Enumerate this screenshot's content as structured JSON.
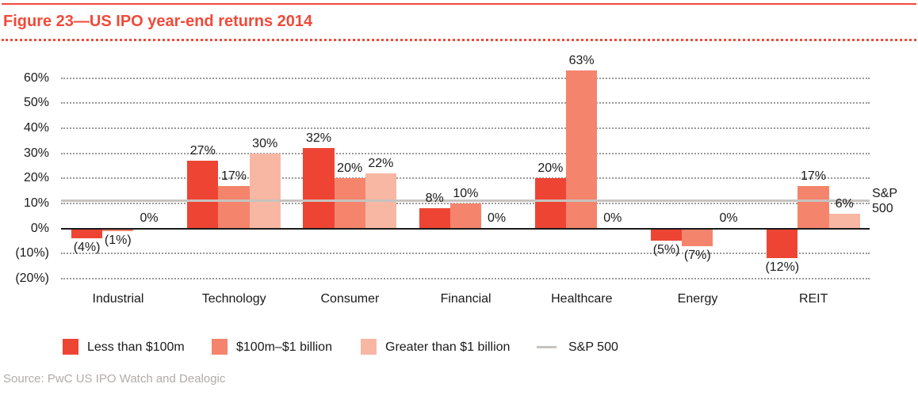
{
  "header": {
    "title": "Figure 23—US IPO year-end returns 2014"
  },
  "chart_data": {
    "type": "bar",
    "title": "US IPO year-end returns 2014",
    "xlabel": "",
    "ylabel": "",
    "categories": [
      "Industrial",
      "Technology",
      "Consumer",
      "Financial",
      "Healthcare",
      "Energy",
      "REIT"
    ],
    "series": [
      {
        "name": "Less than $100m",
        "color": "#ee4434",
        "values": [
          -4,
          27,
          32,
          8,
          20,
          -5,
          -12
        ],
        "labels": [
          "(4%)",
          "27%",
          "32%",
          "8%",
          "20%",
          "(5%)",
          "(12%)"
        ]
      },
      {
        "name": "$100m–$1 billion",
        "color": "#f5846c",
        "values": [
          -1,
          17,
          20,
          10,
          63,
          -7,
          17
        ],
        "labels": [
          "(1%)",
          "17%",
          "20%",
          "10%",
          "63%",
          "(7%)",
          "17%"
        ]
      },
      {
        "name": "Greater than $1 billion",
        "color": "#f8b7a3",
        "values": [
          0,
          30,
          22,
          0,
          0,
          0,
          6
        ],
        "labels": [
          "0%",
          "30%",
          "22%",
          "0%",
          "0%",
          "0%",
          "6%"
        ]
      }
    ],
    "y_ticks": [
      {
        "value": 60,
        "label": "60%"
      },
      {
        "value": 50,
        "label": "50%"
      },
      {
        "value": 40,
        "label": "40%"
      },
      {
        "value": 30,
        "label": "30%"
      },
      {
        "value": 20,
        "label": "20%"
      },
      {
        "value": 10,
        "label": "10%"
      },
      {
        "value": 0,
        "label": "0%"
      },
      {
        "value": -10,
        "label": "(10%)"
      },
      {
        "value": -20,
        "label": "(20%)"
      }
    ],
    "ylim": [
      -20,
      65
    ],
    "grid": "dotted-horizontal",
    "legend_position": "bottom",
    "reference_line": {
      "name": "S&P 500",
      "value": 11.2,
      "color": "#c6c2bf",
      "side_label": [
        "S&P",
        "500"
      ]
    },
    "legend": [
      {
        "label": "Less than $100m",
        "marker": "square",
        "color": "#ee4434"
      },
      {
        "label": "$100m–$1 billion",
        "marker": "square",
        "color": "#f5846c"
      },
      {
        "label": "Greater than $1 billion",
        "marker": "square",
        "color": "#f8b7a3"
      },
      {
        "label": "S&P 500",
        "marker": "line",
        "color": "#c6c2bf"
      }
    ]
  },
  "source": {
    "text": "Source: PwC US IPO Watch and Dealogic"
  },
  "colors": {
    "accent": "#f04a3a",
    "axis": "#1a1a1a",
    "gridline": "#9a9a9a",
    "source_text": "#b3aba8"
  }
}
